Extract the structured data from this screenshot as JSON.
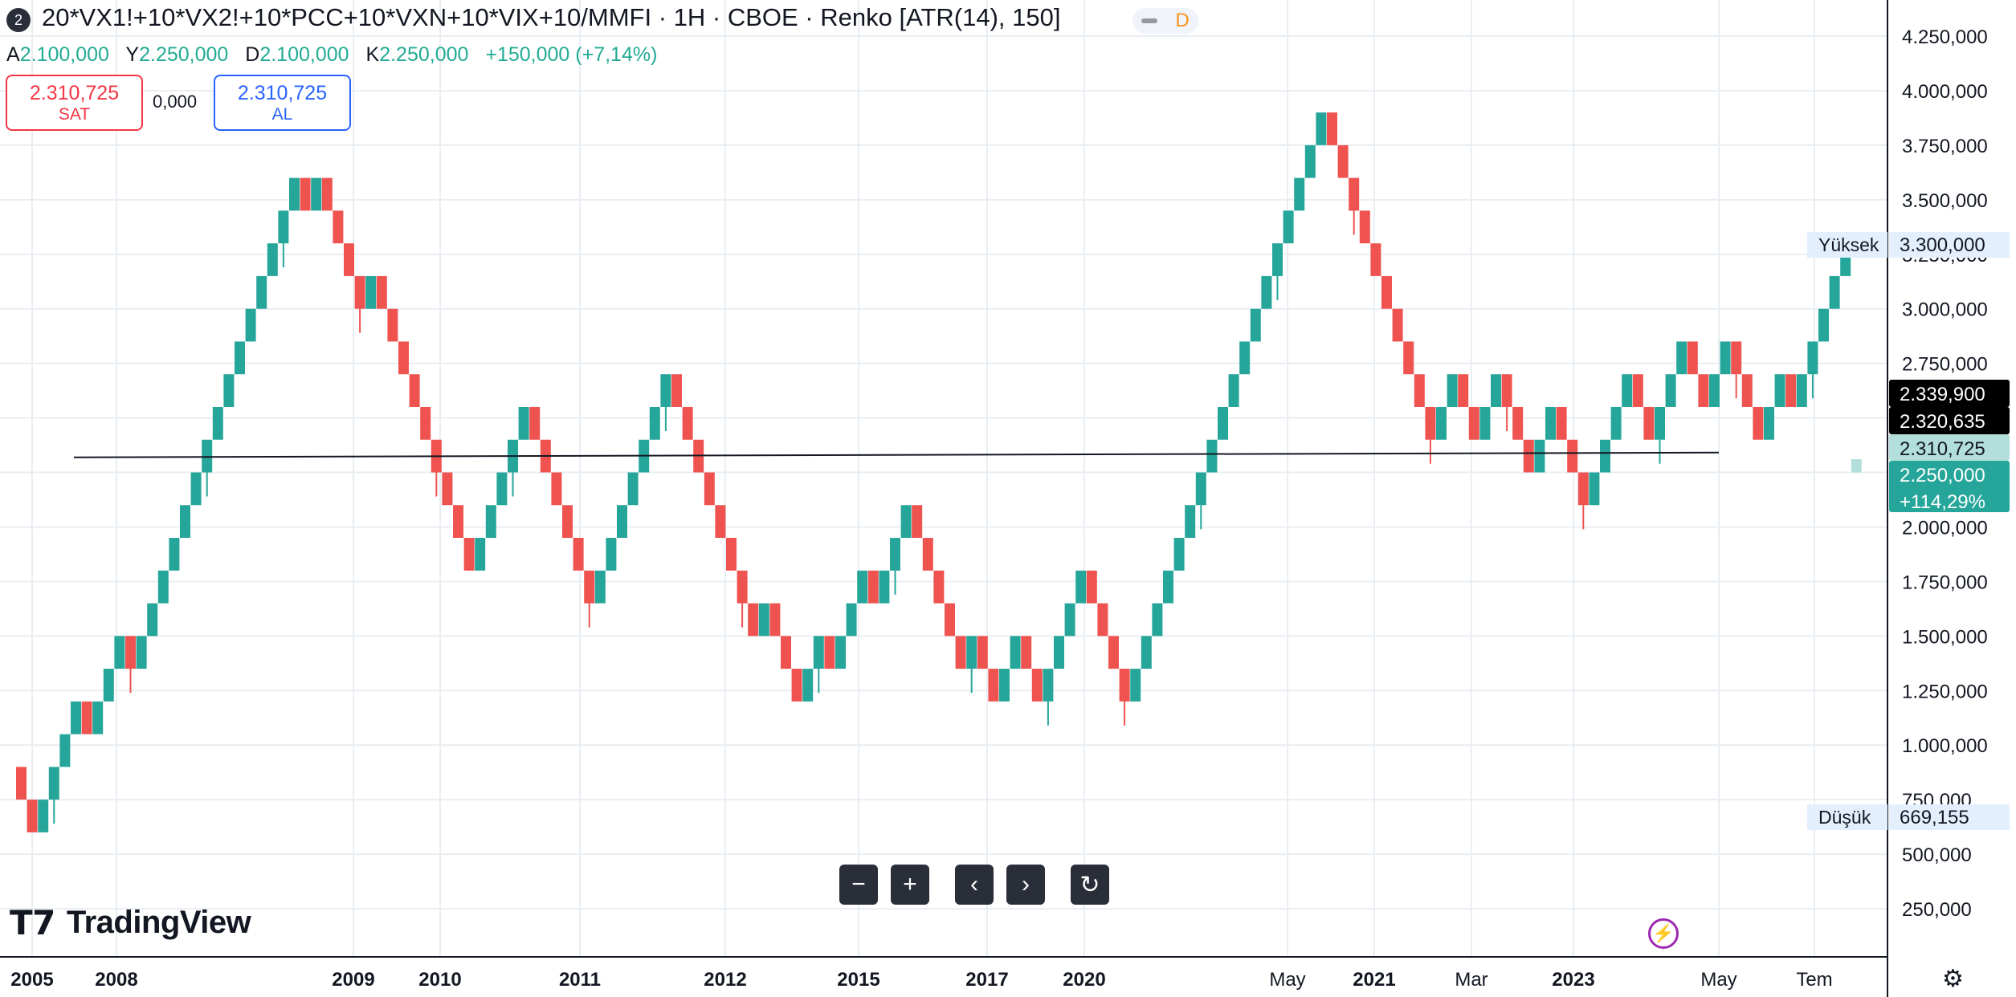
{
  "header": {
    "badge": "2",
    "title": "20*VX1!+10*VX2!+10*PCC+10*VXN+10*VIX+10/MMFI · 1H · CBOE · Renko [ATR(14), 150]",
    "status_letter": "D"
  },
  "ohlc": {
    "open_label": "A",
    "open": "2.100,000",
    "high_label": "Y",
    "high": "2.250,000",
    "low_label": "D",
    "low": "2.100,000",
    "close_label": "K",
    "close": "2.250,000",
    "change": "+150,000 (+7,14%)"
  },
  "trade": {
    "sell_price": "2.310,725",
    "sell_label": "SAT",
    "spread": "0,000",
    "buy_price": "2.310,725",
    "buy_label": "AL"
  },
  "controls": [
    "zoom-out",
    "zoom-in",
    "scroll-left",
    "scroll-right",
    "reset"
  ],
  "logo": {
    "text": "TradingView"
  },
  "chart_data": {
    "type": "renko",
    "box_size": 150000,
    "start_price": 900000,
    "start_direction": "down",
    "ylim": [
      100000,
      4350000
    ],
    "y_ticks": [
      250000,
      500000,
      750000,
      1000000,
      1250000,
      1500000,
      1750000,
      2000000,
      2250000,
      2500000,
      2750000,
      3000000,
      3250000,
      3500000,
      3750000,
      4000000,
      4250000
    ],
    "y_tick_labels": [
      "250,000",
      "500,000",
      "750,000",
      "1.000,000",
      "1.250,000",
      "1.500,000",
      "1.750,000",
      "2.000,000",
      "2.250,000",
      "2.500,000",
      "2.750,000",
      "3.000,000",
      "3.250,000",
      "3.500,000",
      "3.750,000",
      "4.000,000",
      "4.250,000"
    ],
    "x_labels": [
      "2005",
      "2008",
      "2009",
      "2010",
      "2011",
      "2012",
      "2015",
      "2017",
      "2020",
      "May",
      "2021",
      "Mar",
      "2023",
      "May",
      "Tem"
    ],
    "bricks": [
      -1,
      -1,
      1,
      1,
      1,
      1,
      -1,
      1,
      1,
      1,
      -1,
      1,
      1,
      1,
      1,
      1,
      1,
      1,
      1,
      1,
      1,
      1,
      1,
      1,
      1,
      1,
      -1,
      1,
      -1,
      -1,
      -1,
      -1,
      1,
      -1,
      -1,
      -1,
      -1,
      -1,
      -1,
      -1,
      -1,
      -1,
      1,
      1,
      1,
      1,
      1,
      -1,
      -1,
      -1,
      -1,
      -1,
      -1,
      1,
      1,
      1,
      1,
      1,
      1,
      1,
      -1,
      -1,
      -1,
      -1,
      -1,
      -1,
      -1,
      -1,
      1,
      -1,
      -1,
      -1,
      1,
      1,
      -1,
      1,
      1,
      1,
      -1,
      1,
      1,
      1,
      -1,
      -1,
      -1,
      -1,
      -1,
      1,
      -1,
      -1,
      1,
      1,
      -1,
      -1,
      1,
      1,
      1,
      1,
      -1,
      -1,
      -1,
      -1,
      1,
      1,
      1,
      1,
      1,
      1,
      1,
      1,
      1,
      1,
      1,
      1,
      1,
      1,
      1,
      1,
      1,
      1,
      -1,
      -1,
      -1,
      -1,
      -1,
      -1,
      -1,
      -1,
      -1,
      -1,
      1,
      1,
      -1,
      -1,
      1,
      1,
      -1,
      -1,
      -1,
      1,
      1,
      -1,
      -1,
      -1,
      1,
      1,
      1,
      1,
      -1,
      -1,
      1,
      1,
      1,
      -1,
      -1,
      1,
      1,
      -1,
      -1,
      -1,
      1,
      1,
      -1,
      1,
      1,
      1,
      1,
      1
    ],
    "pending_brick": {
      "low": 2250000,
      "high": 2310725
    },
    "horizontal_line": 2330000,
    "session_high": {
      "label": "Yüksek",
      "value": "3.300,000"
    },
    "session_low": {
      "label": "Düşük",
      "value": "669,155"
    },
    "price_tags": [
      {
        "value": "2.339,900",
        "style": "black"
      },
      {
        "value": "2.320,635",
        "style": "black"
      },
      {
        "value": "2.310,725",
        "style": "lightgreen"
      },
      {
        "value": "2.250,000",
        "sub": "+114,29%",
        "style": "green"
      }
    ],
    "colors": {
      "up": "#26a69a",
      "down": "#ef5350",
      "grid": "#e9eef3",
      "line": "#131722"
    }
  }
}
